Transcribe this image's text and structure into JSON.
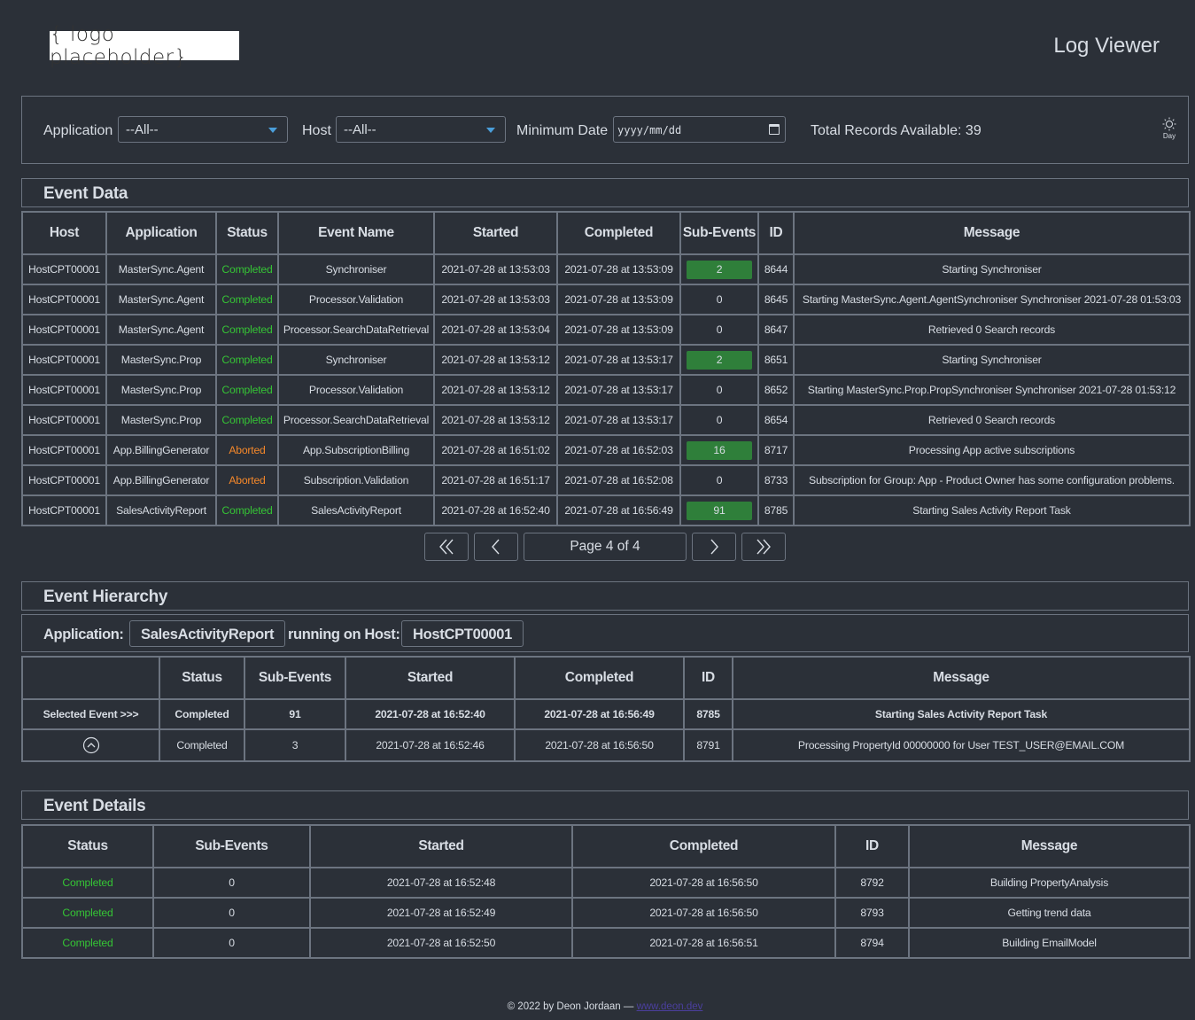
{
  "header": {
    "logo_text": "{ logo placeholder}",
    "title": "Log Viewer"
  },
  "filters": {
    "application_label": "Application",
    "application_value": "--All--",
    "host_label": "Host",
    "host_value": "--All--",
    "min_date_label": "Minimum Date",
    "min_date_placeholder": "yyyy/mm/dd",
    "total_records": "Total Records Available: 39",
    "theme_toggle_label": "Day"
  },
  "event_data": {
    "title": "Event Data",
    "columns": [
      "Host",
      "Application",
      "Status",
      "Event Name",
      "Started",
      "Completed",
      "Sub-Events",
      "ID",
      "Message"
    ],
    "rows": [
      {
        "host": "HostCPT00001",
        "application": "MasterSync.Agent",
        "status": "Completed",
        "event_name": "Synchroniser",
        "started": "2021-07-28 at 13:53:03",
        "completed": "2021-07-28 at 13:53:09",
        "sub_events": "2",
        "id": "8644",
        "message": "Starting Synchroniser"
      },
      {
        "host": "HostCPT00001",
        "application": "MasterSync.Agent",
        "status": "Completed",
        "event_name": "Processor.Validation",
        "started": "2021-07-28 at 13:53:03",
        "completed": "2021-07-28 at 13:53:09",
        "sub_events": "0",
        "id": "8645",
        "message": "Starting MasterSync.Agent.AgentSynchroniser Synchroniser 2021-07-28 01:53:03"
      },
      {
        "host": "HostCPT00001",
        "application": "MasterSync.Agent",
        "status": "Completed",
        "event_name": "Processor.SearchDataRetrieval",
        "started": "2021-07-28 at 13:53:04",
        "completed": "2021-07-28 at 13:53:09",
        "sub_events": "0",
        "id": "8647",
        "message": "Retrieved 0 Search records"
      },
      {
        "host": "HostCPT00001",
        "application": "MasterSync.Prop",
        "status": "Completed",
        "event_name": "Synchroniser",
        "started": "2021-07-28 at 13:53:12",
        "completed": "2021-07-28 at 13:53:17",
        "sub_events": "2",
        "id": "8651",
        "message": "Starting Synchroniser"
      },
      {
        "host": "HostCPT00001",
        "application": "MasterSync.Prop",
        "status": "Completed",
        "event_name": "Processor.Validation",
        "started": "2021-07-28 at 13:53:12",
        "completed": "2021-07-28 at 13:53:17",
        "sub_events": "0",
        "id": "8652",
        "message": "Starting MasterSync.Prop.PropSynchroniser Synchroniser 2021-07-28 01:53:12"
      },
      {
        "host": "HostCPT00001",
        "application": "MasterSync.Prop",
        "status": "Completed",
        "event_name": "Processor.SearchDataRetrieval",
        "started": "2021-07-28 at 13:53:12",
        "completed": "2021-07-28 at 13:53:17",
        "sub_events": "0",
        "id": "8654",
        "message": "Retrieved 0 Search records"
      },
      {
        "host": "HostCPT00001",
        "application": "App.BillingGenerator",
        "status": "Aborted",
        "event_name": "App.SubscriptionBilling",
        "started": "2021-07-28 at 16:51:02",
        "completed": "2021-07-28 at 16:52:03",
        "sub_events": "16",
        "id": "8717",
        "message": "Processing App active subscriptions"
      },
      {
        "host": "HostCPT00001",
        "application": "App.BillingGenerator",
        "status": "Aborted",
        "event_name": "Subscription.Validation",
        "started": "2021-07-28 at 16:51:17",
        "completed": "2021-07-28 at 16:52:08",
        "sub_events": "0",
        "id": "8733",
        "message": "Subscription for Group: App - Product Owner has some configuration problems."
      },
      {
        "host": "HostCPT00001",
        "application": "SalesActivityReport",
        "status": "Completed",
        "event_name": "SalesActivityReport",
        "started": "2021-07-28 at 16:52:40",
        "completed": "2021-07-28 at 16:56:49",
        "sub_events": "91",
        "id": "8785",
        "message": "Starting Sales Activity Report Task"
      }
    ],
    "pagination": {
      "label": "Page 4 of 4"
    }
  },
  "event_hierarchy": {
    "title": "Event Hierarchy",
    "application_label": "Application:",
    "application_value": "SalesActivityReport",
    "host_label": "running on Host:",
    "host_value": "HostCPT00001",
    "columns": [
      "",
      "Status",
      "Sub-Events",
      "Started",
      "Completed",
      "ID",
      "Message"
    ],
    "rows": [
      {
        "label": "Selected Event >>>",
        "status": "Completed",
        "sub_events": "91",
        "started": "2021-07-28 at 16:52:40",
        "completed": "2021-07-28 at 16:56:49",
        "id": "8785",
        "message": "Starting Sales Activity Report Task"
      },
      {
        "label": "",
        "status": "Completed",
        "sub_events": "3",
        "started": "2021-07-28 at 16:52:46",
        "completed": "2021-07-28 at 16:56:50",
        "id": "8791",
        "message": "Processing PropertyId 00000000 for User TEST_USER@EMAIL.COM"
      }
    ]
  },
  "event_details": {
    "title": "Event Details",
    "columns": [
      "Status",
      "Sub-Events",
      "Started",
      "Completed",
      "ID",
      "Message"
    ],
    "rows": [
      {
        "status": "Completed",
        "sub_events": "0",
        "started": "2021-07-28 at 16:52:48",
        "completed": "2021-07-28 at 16:56:50",
        "id": "8792",
        "message": "Building PropertyAnalysis"
      },
      {
        "status": "Completed",
        "sub_events": "0",
        "started": "2021-07-28 at 16:52:49",
        "completed": "2021-07-28 at 16:56:50",
        "id": "8793",
        "message": "Getting trend data"
      },
      {
        "status": "Completed",
        "sub_events": "0",
        "started": "2021-07-28 at 16:52:50",
        "completed": "2021-07-28 at 16:56:51",
        "id": "8794",
        "message": "Building EmailModel"
      }
    ]
  },
  "footer": {
    "text": "© 2022 by Deon Jordaan — ",
    "link_text": "www.deon.dev"
  },
  "colors": {
    "background": "#2b3038",
    "border": "#6c7480",
    "text": "#d8dde4",
    "status_completed": "#35c435",
    "status_aborted": "#f5882a",
    "sub_event_badge": "#2f7f3a",
    "select_caret": "#4a9eda"
  },
  "icons": {
    "theme": "sun-icon",
    "first_page": "double-chevron-left-icon",
    "prev_page": "chevron-left-icon",
    "next_page": "chevron-right-icon",
    "last_page": "double-chevron-right-icon",
    "hierarchy_up": "circle-chevron-up-icon",
    "select_dropdown": "caret-down-icon",
    "calendar": "calendar-icon"
  }
}
